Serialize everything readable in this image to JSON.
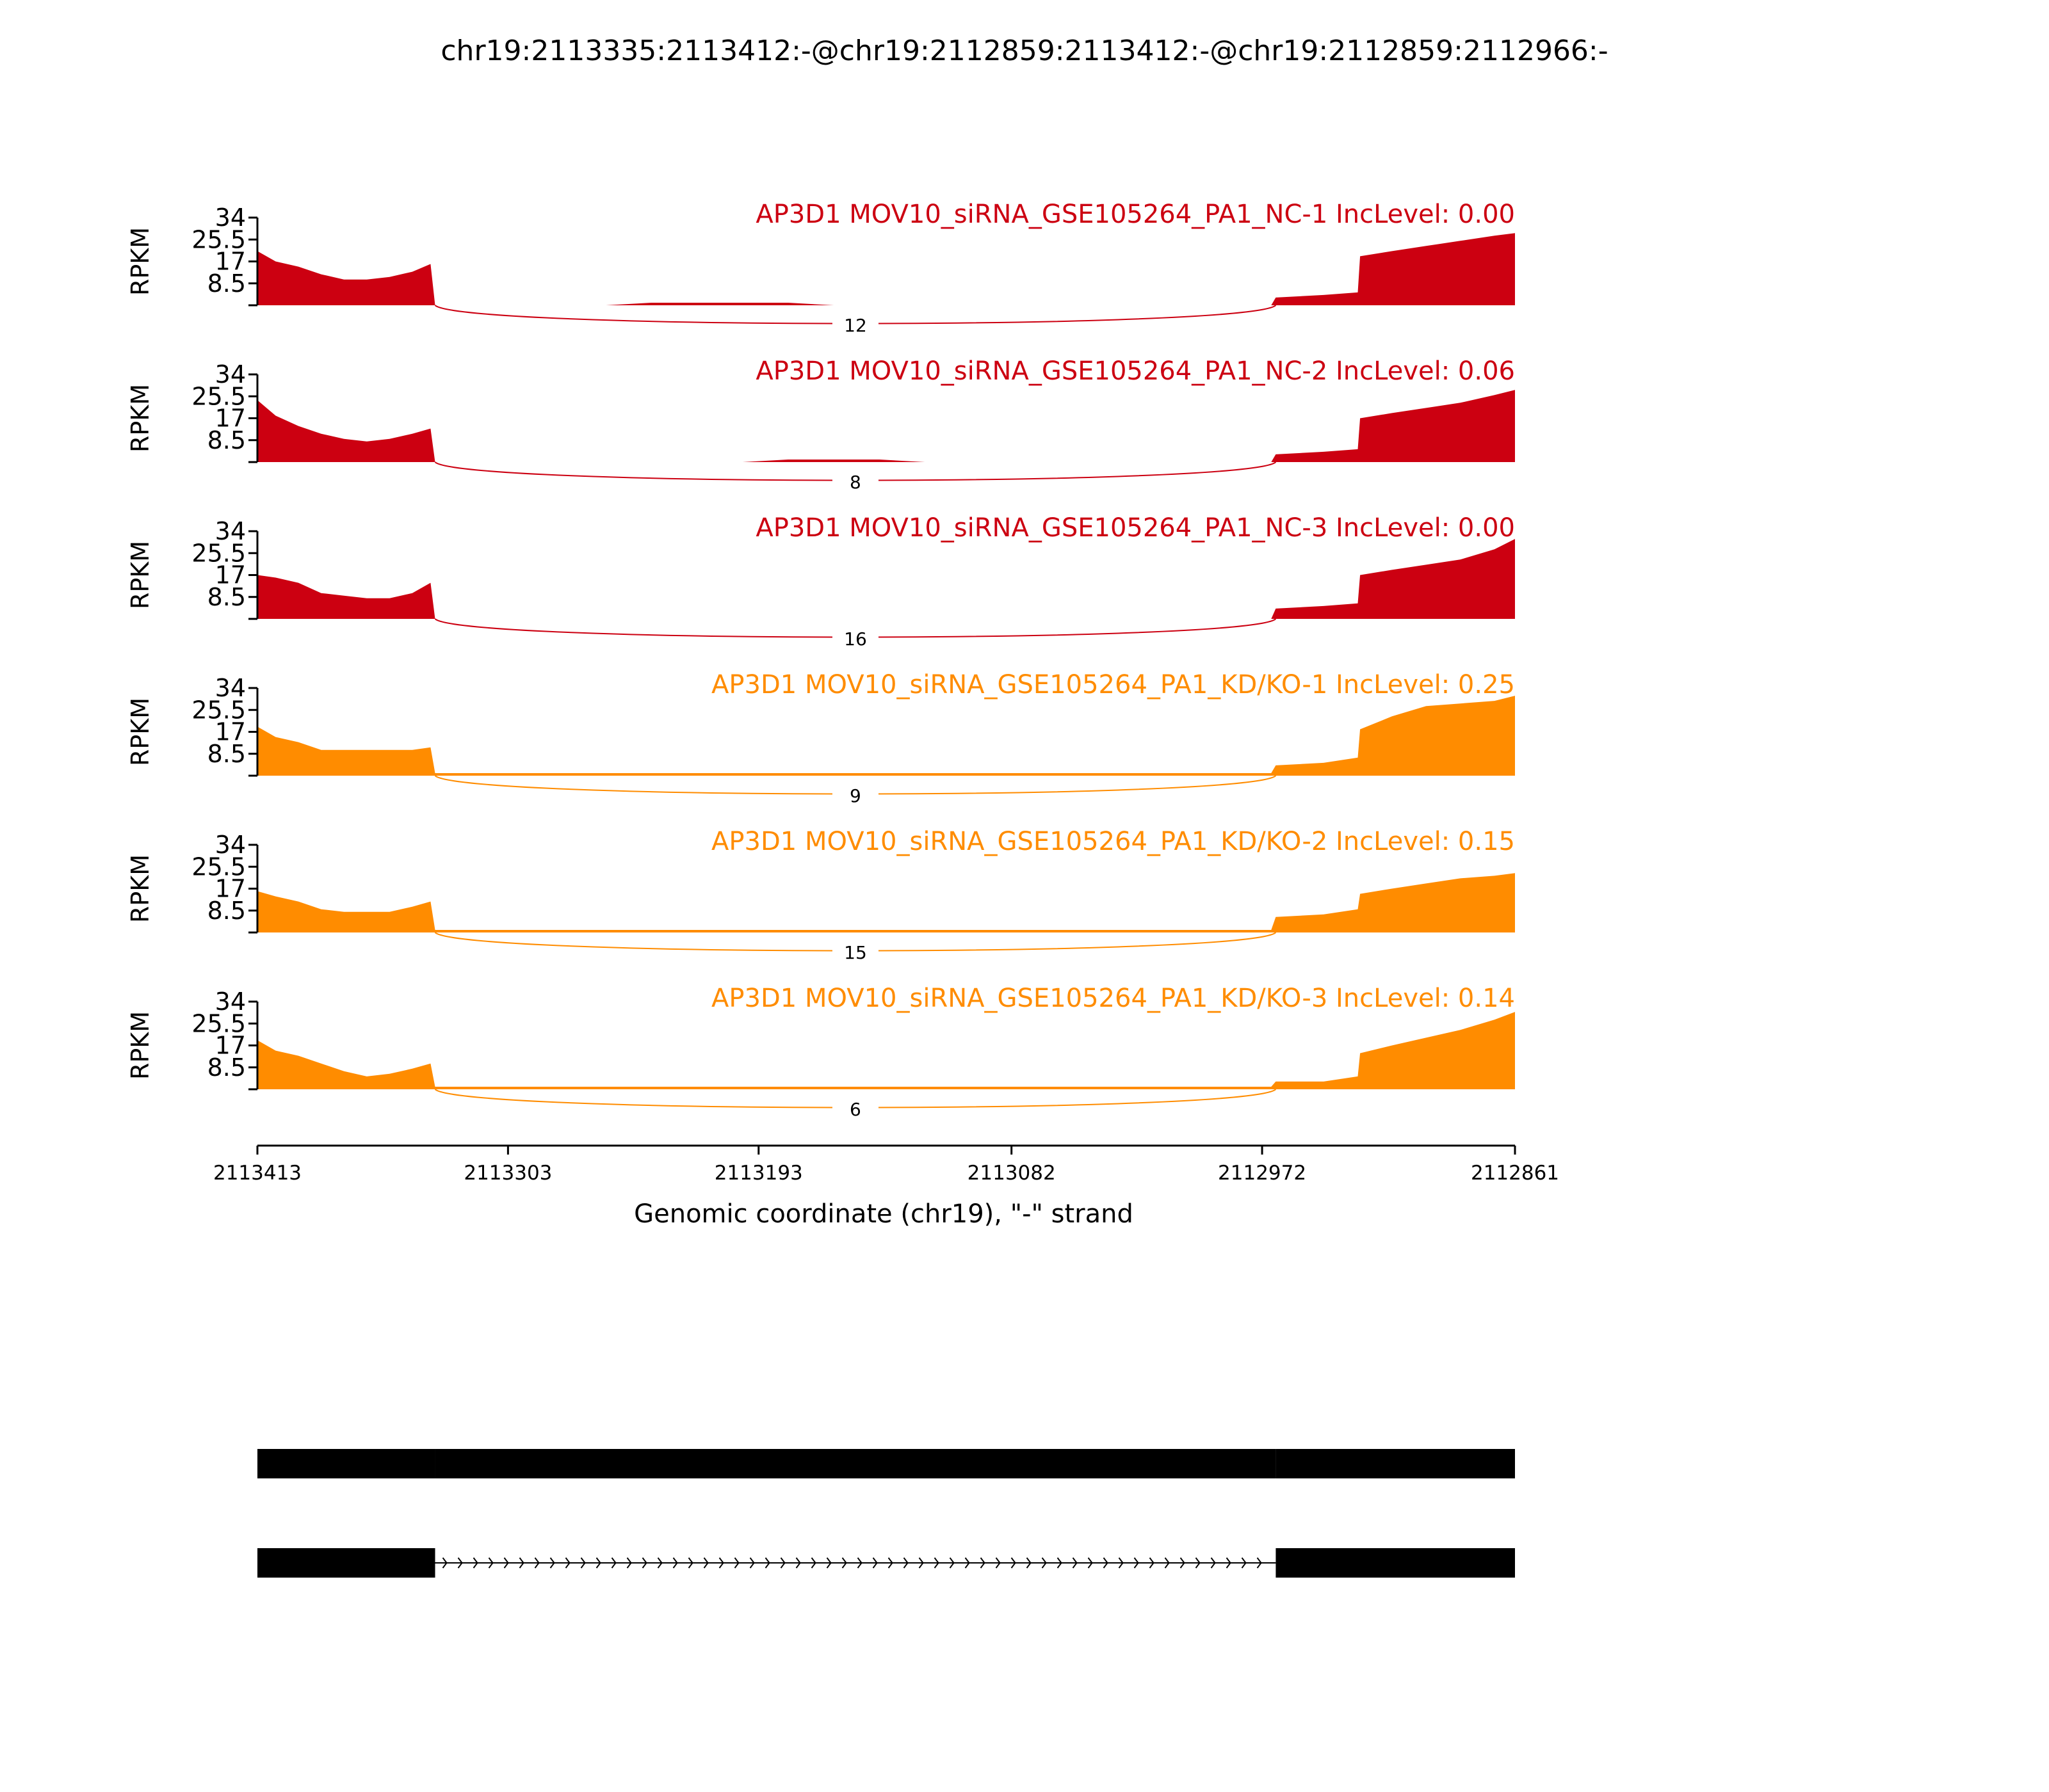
{
  "chart_data": {
    "type": "area",
    "title": "chr19:2113335:2113412:-@chr19:2112859:2113412:-@chr19:2112859:2112966:-",
    "xlabel": "Genomic coordinate (chr19), \"-\" strand",
    "ylabel": "RPKM",
    "xlim": [
      2113413,
      2112861
    ],
    "ylim": [
      0,
      34
    ],
    "x_ticks": [
      "2113413",
      "2113303",
      "2113193",
      "2113082",
      "2112972",
      "2112861"
    ],
    "y_ticks": [
      "8.5",
      "17",
      "25.5",
      "34"
    ],
    "x": [
      2113413,
      2113405,
      2113395,
      2113385,
      2113375,
      2113365,
      2113355,
      2113345,
      2113337,
      2113335,
      2113320,
      2113300,
      2113280,
      2113260,
      2113240,
      2113220,
      2113200,
      2113180,
      2113160,
      2113140,
      2113120,
      2113100,
      2113080,
      2113060,
      2113040,
      2113020,
      2113000,
      2112980,
      2112968,
      2112966,
      2112945,
      2112930,
      2112929,
      2112915,
      2112900,
      2112885,
      2112870,
      2112861
    ],
    "series": [
      {
        "name": "AP3D1 MOV10_siRNA_GSE105264_PA1_NC-1 IncLevel: 0.00",
        "color": "#cc0011",
        "values": [
          21,
          17,
          15,
          12,
          10,
          10,
          11,
          13,
          16,
          0,
          0,
          0,
          0,
          0,
          1,
          1,
          1,
          1,
          0,
          0,
          0,
          0,
          0,
          0,
          0,
          0,
          0,
          0,
          0,
          3,
          4,
          5,
          19,
          21,
          23,
          25,
          27,
          28
        ],
        "junction_count": "12"
      },
      {
        "name": "AP3D1 MOV10_siRNA_GSE105264_PA1_NC-2 IncLevel: 0.06",
        "color": "#cc0011",
        "values": [
          24,
          18,
          14,
          11,
          9,
          8,
          9,
          11,
          13,
          0,
          0,
          0,
          0,
          0,
          0,
          0,
          0,
          1,
          1,
          1,
          0,
          0,
          0,
          0,
          0,
          0,
          0,
          0,
          0,
          3,
          4,
          5,
          17,
          19,
          21,
          23,
          26,
          28
        ],
        "junction_count": "8"
      },
      {
        "name": "AP3D1 MOV10_siRNA_GSE105264_PA1_NC-3 IncLevel: 0.00",
        "color": "#cc0011",
        "values": [
          17,
          16,
          14,
          10,
          9,
          8,
          8,
          10,
          14,
          0,
          0,
          0,
          0,
          0,
          0,
          0,
          0,
          0,
          0,
          0,
          0,
          0,
          0,
          0,
          0,
          0,
          0,
          0,
          0,
          4,
          5,
          6,
          17,
          19,
          21,
          23,
          27,
          31
        ],
        "junction_count": "16"
      },
      {
        "name": "AP3D1 MOV10_siRNA_GSE105264_PA1_KD/KO-1 IncLevel: 0.25",
        "color": "#ff8c00",
        "values": [
          19,
          15,
          13,
          10,
          10,
          10,
          10,
          10,
          11,
          1,
          1,
          1,
          1,
          1,
          1,
          1,
          1,
          1,
          1,
          1,
          1,
          1,
          1,
          1,
          1,
          1,
          1,
          1,
          1,
          4,
          5,
          7,
          18,
          23,
          27,
          28,
          29,
          31
        ],
        "junction_count": "9"
      },
      {
        "name": "AP3D1 MOV10_siRNA_GSE105264_PA1_KD/KO-2 IncLevel: 0.15",
        "color": "#ff8c00",
        "values": [
          16,
          14,
          12,
          9,
          8,
          8,
          8,
          10,
          12,
          1,
          1,
          1,
          1,
          1,
          1,
          1,
          1,
          1,
          1,
          1,
          1,
          1,
          1,
          1,
          1,
          1,
          1,
          1,
          1,
          6,
          7,
          9,
          15,
          17,
          19,
          21,
          22,
          23
        ],
        "junction_count": "15"
      },
      {
        "name": "AP3D1 MOV10_siRNA_GSE105264_PA1_KD/KO-3 IncLevel: 0.14",
        "color": "#ff8c00",
        "values": [
          19,
          15,
          13,
          10,
          7,
          5,
          6,
          8,
          10,
          1,
          1,
          1,
          1,
          1,
          1,
          1,
          1,
          1,
          1,
          1,
          1,
          1,
          1,
          1,
          1,
          1,
          1,
          1,
          1,
          3,
          3,
          5,
          14,
          17,
          20,
          23,
          27,
          30
        ],
        "junction_count": "6"
      }
    ],
    "isoforms": [
      {
        "exons": [
          [
            2113413,
            2113335
          ],
          [
            2113335,
            2112966
          ],
          [
            2112966,
            2112861
          ]
        ]
      },
      {
        "exons": [
          [
            2113413,
            2113335
          ],
          [
            2112966,
            2112861
          ]
        ],
        "intron": [
          2113335,
          2112966
        ]
      }
    ]
  }
}
